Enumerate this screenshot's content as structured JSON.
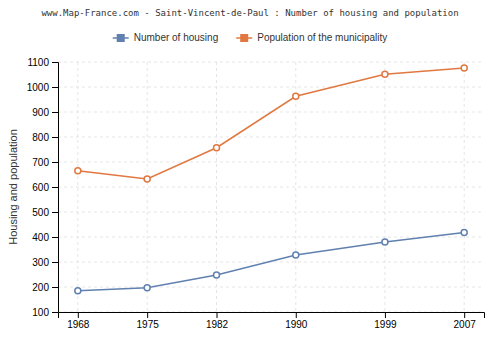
{
  "chart_data": {
    "type": "line",
    "title": "www.Map-France.com - Saint-Vincent-de-Paul : Number of housing and population",
    "ylabel": "Housing and population",
    "x": [
      1968,
      1975,
      1982,
      1990,
      1999,
      2007
    ],
    "series": [
      {
        "name": "Number of housing",
        "color": "#6080b0",
        "marker": "circle",
        "values": [
          185,
          197,
          248,
          328,
          380,
          418
        ]
      },
      {
        "name": "Population of the municipality",
        "color": "#e07840",
        "marker": "circle",
        "values": [
          665,
          632,
          757,
          963,
          1051,
          1076
        ]
      }
    ],
    "xlim": [
      1966,
      2009
    ],
    "xticks": [
      1968,
      1975,
      1982,
      1990,
      1999,
      2007
    ],
    "ylim": [
      100,
      1100
    ],
    "yticks": [
      100,
      200,
      300,
      400,
      500,
      600,
      700,
      800,
      900,
      1000,
      1100
    ],
    "grid": true,
    "legend": "top"
  }
}
